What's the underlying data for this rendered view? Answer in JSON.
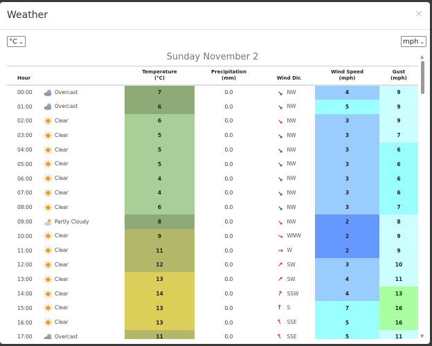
{
  "window": {
    "title": "Weather",
    "close": "×"
  },
  "controls": {
    "temp_unit": "°C",
    "speed_unit": "mph"
  },
  "date": "Sunday November 2",
  "headers": {
    "hour": "Hour",
    "temperature": "Temperature",
    "temperature_unit": "(°C)",
    "precipitation": "Precipitation",
    "precipitation_unit": "(mm)",
    "wind_dir": "Wind Dir.",
    "wind_speed": "Wind Speed",
    "wind_speed_unit": "(mph)",
    "gust": "Gust",
    "gust_unit": "(mph)"
  },
  "colors": {
    "temp_dark_green": "#8eab77",
    "temp_light_green": "#a8cf98",
    "temp_olive": "#b3b76a",
    "temp_yellow": "#dccf59",
    "wind_light_blue": "#99ccff",
    "wind_cyan": "#99ffff",
    "wind_blue": "#6699ff",
    "gust_pale": "#ccffff",
    "gust_cyan": "#99ffff",
    "gust_green": "#aaffa0",
    "arrow_blue": "#3a2aa0",
    "arrow_red": "#e0202a"
  },
  "rows": [
    {
      "hour": "00:00",
      "icon": "overcast-icon",
      "cond": "Overcast",
      "temp": "7",
      "tc": "#8eab77",
      "precip": "0.0",
      "dir": "NW",
      "deg": 315,
      "ac": "#3a2aa0",
      "ws": "4",
      "wc": "#99ccff",
      "gust": "9",
      "gc": "#ccffff"
    },
    {
      "hour": "01:00",
      "icon": "overcast-icon",
      "cond": "Overcast",
      "temp": "6",
      "tc": "#8eab77",
      "precip": "0.0",
      "dir": "NW",
      "deg": 315,
      "ac": "#3a2aa0",
      "ws": "5",
      "wc": "#99ffff",
      "gust": "9",
      "gc": "#ccffff"
    },
    {
      "hour": "02:00",
      "icon": "sun-icon",
      "cond": "Clear",
      "temp": "6",
      "tc": "#a8cf98",
      "precip": "0.0",
      "dir": "NW",
      "deg": 315,
      "ac": "#e0202a",
      "ws": "3",
      "wc": "#99ccff",
      "gust": "9",
      "gc": "#ccffff"
    },
    {
      "hour": "03:00",
      "icon": "sun-icon",
      "cond": "Clear",
      "temp": "5",
      "tc": "#a8cf98",
      "precip": "0.0",
      "dir": "NW",
      "deg": 315,
      "ac": "#3a2aa0",
      "ws": "3",
      "wc": "#99ccff",
      "gust": "7",
      "gc": "#ccffff"
    },
    {
      "hour": "04:00",
      "icon": "sun-icon",
      "cond": "Clear",
      "temp": "5",
      "tc": "#a8cf98",
      "precip": "0.0",
      "dir": "NW",
      "deg": 315,
      "ac": "#3a2aa0",
      "ws": "3",
      "wc": "#99ccff",
      "gust": "6",
      "gc": "#99ffff"
    },
    {
      "hour": "05:00",
      "icon": "sun-icon",
      "cond": "Clear",
      "temp": "5",
      "tc": "#a8cf98",
      "precip": "0.0",
      "dir": "NW",
      "deg": 315,
      "ac": "#3a2aa0",
      "ws": "3",
      "wc": "#99ccff",
      "gust": "6",
      "gc": "#99ffff"
    },
    {
      "hour": "06:00",
      "icon": "sun-icon",
      "cond": "Clear",
      "temp": "4",
      "tc": "#a8cf98",
      "precip": "0.0",
      "dir": "NW",
      "deg": 315,
      "ac": "#3a2aa0",
      "ws": "3",
      "wc": "#99ccff",
      "gust": "6",
      "gc": "#99ffff"
    },
    {
      "hour": "07:00",
      "icon": "sun-icon",
      "cond": "Clear",
      "temp": "4",
      "tc": "#a8cf98",
      "precip": "0.0",
      "dir": "NW",
      "deg": 315,
      "ac": "#3a2aa0",
      "ws": "3",
      "wc": "#99ccff",
      "gust": "6",
      "gc": "#99ffff"
    },
    {
      "hour": "08:00",
      "icon": "sun-icon",
      "cond": "Clear",
      "temp": "6",
      "tc": "#a8cf98",
      "precip": "0.0",
      "dir": "NW",
      "deg": 315,
      "ac": "#3a2aa0",
      "ws": "3",
      "wc": "#99ccff",
      "gust": "7",
      "gc": "#99ffff"
    },
    {
      "hour": "09:00",
      "icon": "partly-cloudy-icon",
      "cond": "Partly Cloudy",
      "temp": "8",
      "tc": "#8eab77",
      "precip": "0.0",
      "dir": "NW",
      "deg": 315,
      "ac": "#e0202a",
      "ws": "2",
      "wc": "#6699ff",
      "gust": "8",
      "gc": "#ccffff"
    },
    {
      "hour": "10:00",
      "icon": "sun-icon",
      "cond": "Clear",
      "temp": "9",
      "tc": "#b3b76a",
      "precip": "0.0",
      "dir": "WNW",
      "deg": 292.5,
      "ac": "#e0202a",
      "ws": "2",
      "wc": "#6699ff",
      "gust": "9",
      "gc": "#ccffff"
    },
    {
      "hour": "11:00",
      "icon": "sun-icon",
      "cond": "Clear",
      "temp": "11",
      "tc": "#b3b76a",
      "precip": "0.0",
      "dir": "W",
      "deg": 270,
      "ac": "#e0202a",
      "ws": "2",
      "wc": "#6699ff",
      "gust": "9",
      "gc": "#ccffff"
    },
    {
      "hour": "12:00",
      "icon": "sun-icon",
      "cond": "Clear",
      "temp": "12",
      "tc": "#b3b76a",
      "precip": "0.0",
      "dir": "SW",
      "deg": 225,
      "ac": "#e0202a",
      "ws": "3",
      "wc": "#99ccff",
      "gust": "10",
      "gc": "#ccffff"
    },
    {
      "hour": "13:00",
      "icon": "sun-icon",
      "cond": "Clear",
      "temp": "13",
      "tc": "#dccf59",
      "precip": "0.0",
      "dir": "SW",
      "deg": 225,
      "ac": "#e0202a",
      "ws": "4",
      "wc": "#99ccff",
      "gust": "11",
      "gc": "#ccffff"
    },
    {
      "hour": "14:00",
      "icon": "sun-icon",
      "cond": "Clear",
      "temp": "14",
      "tc": "#dccf59",
      "precip": "0.0",
      "dir": "SSW",
      "deg": 202.5,
      "ac": "#e0202a",
      "ws": "4",
      "wc": "#99ccff",
      "gust": "13",
      "gc": "#aaffa0"
    },
    {
      "hour": "15:00",
      "icon": "sun-icon",
      "cond": "Clear",
      "temp": "13",
      "tc": "#dccf59",
      "precip": "0.0",
      "dir": "S",
      "deg": 180,
      "ac": "#e0202a",
      "ws": "7",
      "wc": "#99ffff",
      "gust": "16",
      "gc": "#aaffa0"
    },
    {
      "hour": "16:00",
      "icon": "sun-icon",
      "cond": "Clear",
      "temp": "13",
      "tc": "#dccf59",
      "precip": "0.0",
      "dir": "SSE",
      "deg": 157.5,
      "ac": "#e0202a",
      "ws": "5",
      "wc": "#99ffff",
      "gust": "16",
      "gc": "#aaffa0"
    },
    {
      "hour": "17:00",
      "icon": "overcast-icon",
      "cond": "Overcast",
      "temp": "11",
      "tc": "#b3b76a",
      "precip": "0.0",
      "dir": "SSE",
      "deg": 157.5,
      "ac": "#e0202a",
      "ws": "5",
      "wc": "#99ffff",
      "gust": "11",
      "gc": "#ccffff"
    }
  ]
}
